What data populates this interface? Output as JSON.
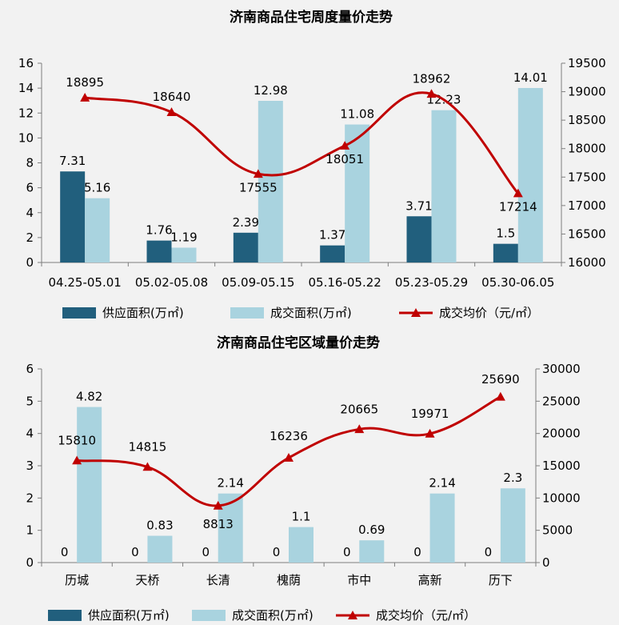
{
  "chart_data": [
    {
      "type": "bar",
      "title": "济南商品住宅周度量价走势",
      "categories": [
        "04.25-05.01",
        "05.02-05.08",
        "05.09-05.15",
        "05.16-05.22",
        "05.23-05.29",
        "05.30-06.05"
      ],
      "series": [
        {
          "name": "供应面积(万㎡)",
          "type": "bar",
          "axis": "left",
          "color": "#215f7d",
          "values": [
            7.31,
            1.76,
            2.39,
            1.37,
            3.71,
            1.5
          ]
        },
        {
          "name": "成交面积(万㎡)",
          "type": "bar",
          "axis": "left",
          "color": "#a9d3df",
          "values": [
            5.16,
            1.19,
            12.98,
            11.08,
            12.23,
            14.01
          ]
        },
        {
          "name": "成交均价（元/㎡）",
          "type": "line",
          "axis": "right",
          "color": "#c00000",
          "values": [
            18895,
            18640,
            17555,
            18051,
            18962,
            17214
          ]
        }
      ],
      "ylim_left": [
        0,
        16
      ],
      "yticks_left": [
        0,
        2,
        4,
        6,
        8,
        10,
        12,
        14,
        16
      ],
      "ylim_right": [
        16000,
        19500
      ],
      "yticks_right": [
        16000,
        16500,
        17000,
        17500,
        18000,
        18500,
        19000,
        19500
      ],
      "grid": false,
      "legend_position": "bottom"
    },
    {
      "type": "bar",
      "title": "济南商品住宅区域量价走势",
      "categories": [
        "历城",
        "天桥",
        "长清",
        "槐荫",
        "市中",
        "高新",
        "历下"
      ],
      "series": [
        {
          "name": "供应面积(万㎡)",
          "type": "bar",
          "axis": "left",
          "color": "#215f7d",
          "values": [
            0,
            0,
            0,
            0,
            0,
            0,
            0
          ]
        },
        {
          "name": "成交面积(万㎡)",
          "type": "bar",
          "axis": "left",
          "color": "#a9d3df",
          "values": [
            4.82,
            0.83,
            2.14,
            1.1,
            0.69,
            2.14,
            2.3
          ]
        },
        {
          "name": "成交均价（元/㎡）",
          "type": "line",
          "axis": "right",
          "color": "#c00000",
          "values": [
            15810,
            14815,
            8813,
            16236,
            20665,
            19971,
            25690
          ]
        }
      ],
      "ylim_left": [
        0,
        6
      ],
      "yticks_left": [
        0,
        1,
        2,
        3,
        4,
        5,
        6
      ],
      "ylim_right": [
        0,
        30000
      ],
      "yticks_right": [
        0,
        5000,
        10000,
        15000,
        20000,
        25000,
        30000
      ],
      "grid": false,
      "legend_position": "bottom"
    }
  ]
}
